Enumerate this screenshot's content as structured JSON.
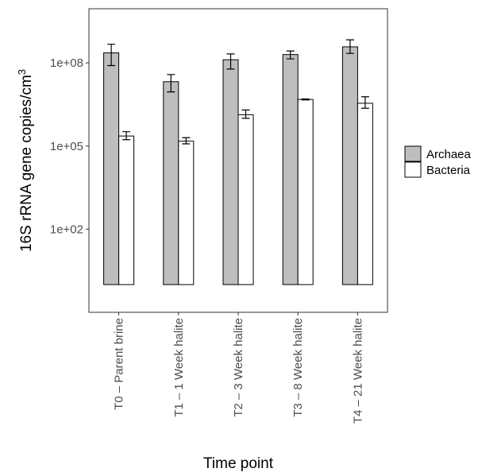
{
  "chart_data": {
    "type": "bar",
    "xlabel": "Time point",
    "ylabel_main": "16S rRNA gene copies/cm",
    "ylabel_sup": "3",
    "y_scale": "log10",
    "ylim": [
      0.1,
      9000000000
    ],
    "y_ticks": [
      {
        "value": 100,
        "label": "1e+02"
      },
      {
        "value": 100000,
        "label": "1e+05"
      },
      {
        "value": 100000000,
        "label": "1e+08"
      }
    ],
    "bar_base": 1,
    "categories": [
      "T0 – Parent brine",
      "T1 – 1 Week halite",
      "T2 – 3 Week halite",
      "T3 – 8 Week halite",
      "T4 – 21 Week halite"
    ],
    "series": [
      {
        "name": "Archaea",
        "color": "#bebebe",
        "values": [
          230000000,
          21000000,
          130000000,
          200000000,
          380000000
        ],
        "err_low": [
          80000000,
          9000000,
          60000000,
          140000000,
          220000000
        ],
        "err_high": [
          470000000,
          38000000,
          210000000,
          270000000,
          680000000
        ]
      },
      {
        "name": "Bacteria",
        "color": "#ffffff",
        "values": [
          230000,
          150000,
          1350000,
          4800000,
          3500000
        ],
        "err_low": [
          170000,
          120000,
          1000000,
          4600000,
          2300000
        ],
        "err_high": [
          330000,
          200000,
          2000000,
          5000000,
          6000000
        ]
      }
    ],
    "grid": false,
    "legend_position": "right"
  }
}
